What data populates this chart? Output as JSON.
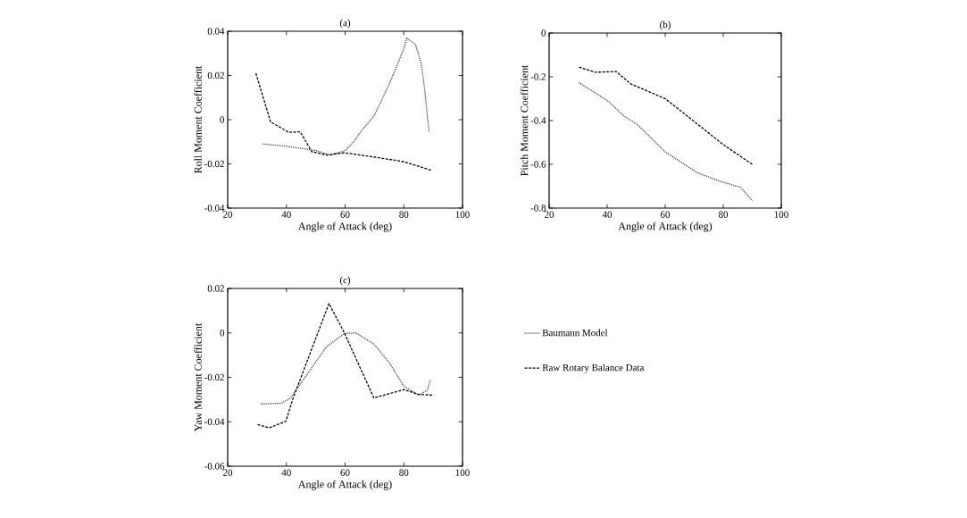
{
  "chart_data": [
    {
      "type": "line",
      "title": "(a)",
      "xlabel": "Angle of Attack (deg)",
      "ylabel": "Roll Moment Coefficient",
      "xlim": [
        20,
        100
      ],
      "ylim": [
        -0.04,
        0.04
      ],
      "xticks": [
        20,
        40,
        60,
        80,
        100
      ],
      "yticks": [
        -0.04,
        -0.02,
        0,
        0.02,
        0.04
      ],
      "series": [
        {
          "color": "#000000",
          "line_style": "dotted",
          "x": [
            32,
            40,
            50,
            55,
            60,
            63,
            65,
            70,
            75,
            80,
            81,
            84,
            86,
            87,
            88.6
          ],
          "values": [
            -0.011,
            -0.012,
            -0.014,
            -0.016,
            -0.014,
            -0.01,
            -0.006,
            0.002,
            0.016,
            0.032,
            0.037,
            0.034,
            0.025,
            0.015,
            -0.0057
          ]
        },
        {
          "color": "#000000",
          "line_style": "dashed",
          "x": [
            29.6,
            34.6,
            40.7,
            44.7,
            48.7,
            53.8,
            59.8,
            67.9,
            80,
            89.6
          ],
          "values": [
            0.021,
            -0.001,
            -0.0057,
            -0.0055,
            -0.0145,
            -0.016,
            -0.015,
            -0.0165,
            -0.019,
            -0.023
          ]
        }
      ]
    },
    {
      "type": "line",
      "title": "(b)",
      "xlabel": "Angle of Attack (deg)",
      "ylabel": "Pitch Moment Coefficient",
      "xlim": [
        20,
        100
      ],
      "ylim": [
        -0.8,
        0
      ],
      "xticks": [
        20,
        40,
        60,
        80,
        100
      ],
      "yticks": [
        -0.8,
        -0.6,
        -0.4,
        -0.2,
        0
      ],
      "series": [
        {
          "color": "#000000",
          "line_style": "dotted",
          "x": [
            30.3,
            40,
            46,
            50.3,
            60,
            71,
            79,
            86,
            90
          ],
          "values": [
            -0.227,
            -0.308,
            -0.381,
            -0.417,
            -0.543,
            -0.638,
            -0.678,
            -0.705,
            -0.766
          ]
        },
        {
          "color": "#000000",
          "line_style": "dashed",
          "x": [
            30.3,
            35.9,
            43.1,
            48.2,
            60,
            71,
            80,
            90
          ],
          "values": [
            -0.156,
            -0.179,
            -0.176,
            -0.233,
            -0.3,
            -0.415,
            -0.51,
            -0.6
          ]
        }
      ]
    },
    {
      "type": "line",
      "title": "(c)",
      "xlabel": "Angle of Attack (deg)",
      "ylabel": "Yaw Moment Coefficient",
      "xlim": [
        20,
        100
      ],
      "ylim": [
        -0.06,
        0.02
      ],
      "xticks": [
        20,
        40,
        60,
        80,
        100
      ],
      "yticks": [
        -0.06,
        -0.04,
        -0.02,
        0,
        0.02
      ],
      "legend": "right",
      "series": [
        {
          "name": "Baumann Model",
          "color": "#000000",
          "line_style": "dotted",
          "x": [
            31.2,
            38.3,
            41.4,
            53.6,
            59.7,
            63.7,
            69.8,
            74.9,
            80,
            85,
            88,
            89
          ],
          "values": [
            -0.032,
            -0.0317,
            -0.0293,
            -0.0063,
            -0.0003,
            0,
            -0.005,
            -0.0131,
            -0.0239,
            -0.0279,
            -0.0259,
            -0.0212
          ]
        },
        {
          "name": "Raw Rotary Balance Data",
          "color": "#000000",
          "line_style": "dashed",
          "x": [
            30.2,
            34.2,
            39.8,
            42.3,
            45.4,
            54.5,
            59.6,
            69.8,
            80,
            85,
            89.7
          ],
          "values": [
            -0.0413,
            -0.0427,
            -0.0398,
            -0.0293,
            -0.0185,
            0.0132,
            0.0004,
            -0.0293,
            -0.0255,
            -0.0277,
            -0.028
          ]
        }
      ]
    }
  ]
}
